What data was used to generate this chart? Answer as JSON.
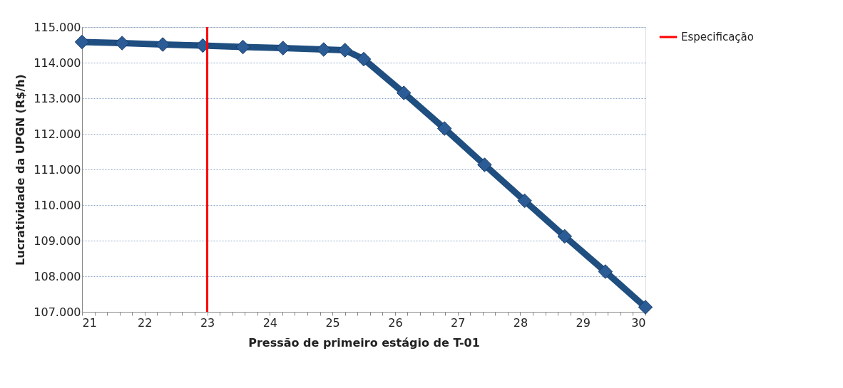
{
  "chart_data": {
    "type": "line",
    "xlabel": "Pressão de primeiro estágio de T-01",
    "ylabel": "Lucratividade da UPGN (R$/h)",
    "x": [
      21,
      21.64,
      22.29,
      22.93,
      23.57,
      24.21,
      24.86,
      25.2,
      25.5,
      26.14,
      26.79,
      27.43,
      28.07,
      28.71,
      29.36,
      30
    ],
    "series": [
      {
        "color": "#1f4e80",
        "values": [
          114580,
          114550,
          114510,
          114480,
          114440,
          114410,
          114370,
          114350,
          114100,
          113150,
          112150,
          111130,
          110120,
          109120,
          108130,
          107130
        ]
      },
      {
        "name": "Especificação",
        "color": "#ff0000",
        "x": [
          23,
          23
        ],
        "values": [
          107000,
          115000
        ],
        "marker": "none"
      }
    ],
    "xlim": [
      21,
      30
    ],
    "xticks": [
      21,
      {
        "value": 21.2,
        "label": null
      },
      {
        "value": 21.4,
        "label": null
      },
      {
        "value": 21.6,
        "label": null
      },
      {
        "value": 21.8,
        "label": null
      },
      22,
      {
        "value": 22.2,
        "label": null
      },
      {
        "value": 22.4,
        "label": null
      },
      {
        "value": 22.6,
        "label": null
      },
      {
        "value": 22.8,
        "label": null
      },
      23,
      {
        "value": 23.2,
        "label": null
      },
      {
        "value": 23.4,
        "label": null
      },
      {
        "value": 23.6,
        "label": null
      },
      {
        "value": 23.8,
        "label": null
      },
      24,
      {
        "value": 24.2,
        "label": null
      },
      {
        "value": 24.4,
        "label": null
      },
      {
        "value": 24.6,
        "label": null
      },
      {
        "value": 24.8,
        "label": null
      },
      25,
      {
        "value": 25.2,
        "label": null
      },
      {
        "value": 25.4,
        "label": null
      },
      {
        "value": 25.6,
        "label": null
      },
      {
        "value": 25.8,
        "label": null
      },
      26,
      {
        "value": 26.2,
        "label": null
      },
      {
        "value": 26.4,
        "label": null
      },
      {
        "value": 26.6,
        "label": null
      },
      {
        "value": 26.8,
        "label": null
      },
      27,
      {
        "value": 27.2,
        "label": null
      },
      {
        "value": 27.4,
        "label": null
      },
      {
        "value": 27.6,
        "label": null
      },
      {
        "value": 27.8,
        "label": null
      },
      28,
      {
        "value": 28.2,
        "label": null
      },
      {
        "value": 28.4,
        "label": null
      },
      {
        "value": 28.6,
        "label": null
      },
      {
        "value": 28.8,
        "label": null
      },
      29,
      {
        "value": 29.2,
        "label": null
      },
      {
        "value": 29.4,
        "label": null
      },
      {
        "value": 29.6,
        "label": null
      },
      {
        "value": 29.8,
        "label": null
      },
      30
    ],
    "ylim": [
      107000,
      115000
    ],
    "yticks": [
      {
        "value": 107000,
        "label": "107.000"
      },
      {
        "value": 108000,
        "label": "108.000"
      },
      {
        "value": 109000,
        "label": "109.000"
      },
      {
        "value": 110000,
        "label": "110.000"
      },
      {
        "value": 111000,
        "label": "111.000"
      },
      {
        "value": 112000,
        "label": "112.000"
      },
      {
        "value": 113000,
        "label": "113.000"
      },
      {
        "value": 114000,
        "label": "114.000"
      },
      {
        "value": 115000,
        "label": "115.000"
      }
    ],
    "grid": "y",
    "legend": "right",
    "marker": "diamond",
    "line_style": "solid"
  }
}
